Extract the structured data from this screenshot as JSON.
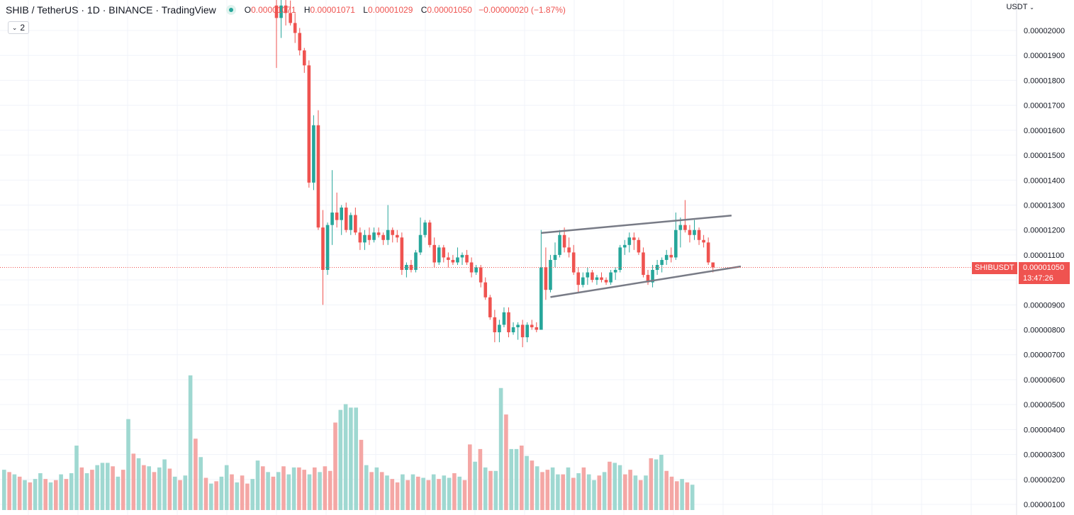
{
  "legend": {
    "symbol": "SHIB",
    "sep1": "/",
    "quote": "TetherUS",
    "interval": "1D",
    "exchange": "BINANCE",
    "platform": "TradingView",
    "open_key": "O",
    "open": "0.00001071",
    "high_key": "H",
    "high": "0.00001071",
    "low_key": "L",
    "low": "0.00001029",
    "close_key": "C",
    "close": "0.00001050",
    "change": "−0.00000020 (−1.87%)",
    "collapse_count": "2",
    "status_color": "#26a69a"
  },
  "axis": {
    "currency": "USDT",
    "ticker_label": "SHIBUSDT",
    "last_price": "0.00001050",
    "countdown": "13:47:26"
  },
  "colors": {
    "up": "#26a69a",
    "down": "#ef5350",
    "up_volume": "#9fd8d1",
    "down_volume": "#f4a7a5",
    "trendline": "#787b86"
  },
  "chart_data": {
    "type": "candlestick",
    "title": "SHIB / TetherUS · 1D · BINANCE",
    "y_unit": "USDT",
    "ylim": [
      1e-06,
      2.11e-05
    ],
    "y_ticks": [
      "0.00000100",
      "0.00000200",
      "0.00000300",
      "0.00000400",
      "0.00000500",
      "0.00000600",
      "0.00000700",
      "0.00000800",
      "0.00000900",
      "0.00001000",
      "0.00001100",
      "0.00001200",
      "0.00001300",
      "0.00001400",
      "0.00001500",
      "0.00001600",
      "0.00001700",
      "0.00001800",
      "0.00001900",
      "0.00002000"
    ],
    "y_tick_values": [
      1e-06,
      2e-06,
      3e-06,
      4e-06,
      5e-06,
      6e-06,
      7e-06,
      8e-06,
      9e-06,
      1e-05,
      1.1e-05,
      1.2e-05,
      1.3e-05,
      1.4e-05,
      1.5e-05,
      1.6e-05,
      1.7e-05,
      1.8e-05,
      1.9e-05,
      2e-05
    ],
    "last_price": 1.05e-05,
    "grid": true,
    "candles": [
      [
        2.1e-05,
        2.15e-05,
        1.85e-05,
        2.05e-05
      ],
      [
        2.05e-05,
        2.15e-05,
        1.97e-05,
        2.1e-05
      ],
      [
        2.1e-05,
        2.14e-05,
        2.02e-05,
        2.07e-05
      ],
      [
        2.07e-05,
        2.12e-05,
        2.02e-05,
        2.03e-05
      ],
      [
        2.03e-05,
        2.07e-05,
        1.95e-05,
        1.99e-05
      ],
      [
        1.99e-05,
        2.01e-05,
        1.9e-05,
        1.92e-05
      ],
      [
        1.92e-05,
        1.93e-05,
        1.83e-05,
        1.86e-05
      ],
      [
        1.86e-05,
        1.88e-05,
        1.37e-05,
        1.39e-05
      ],
      [
        1.39e-05,
        1.66e-05,
        1.36e-05,
        1.62e-05
      ],
      [
        1.62e-05,
        1.68e-05,
        1.2e-05,
        1.21e-05
      ],
      [
        1.21e-05,
        1.28e-05,
        9e-06,
        1.04e-05
      ],
      [
        1.04e-05,
        1.23e-05,
        1.02e-05,
        1.22e-05
      ],
      [
        1.22e-05,
        1.44e-05,
        1.14e-05,
        1.27e-05
      ],
      [
        1.27e-05,
        1.35e-05,
        1.21e-05,
        1.24e-05
      ],
      [
        1.24e-05,
        1.3e-05,
        1.18e-05,
        1.29e-05
      ],
      [
        1.29e-05,
        1.31e-05,
        1.19e-05,
        1.2e-05
      ],
      [
        1.2e-05,
        1.27e-05,
        1.18e-05,
        1.26e-05
      ],
      [
        1.26e-05,
        1.29e-05,
        1.18e-05,
        1.19e-05
      ],
      [
        1.19e-05,
        1.21e-05,
        1.12e-05,
        1.15e-05
      ],
      [
        1.15e-05,
        1.2e-05,
        1.12e-05,
        1.18e-05
      ],
      [
        1.18e-05,
        1.21e-05,
        1.14e-05,
        1.16e-05
      ],
      [
        1.16e-05,
        1.21e-05,
        1.15e-05,
        1.19e-05
      ],
      [
        1.19e-05,
        1.21e-05,
        1.17e-05,
        1.18e-05
      ],
      [
        1.18e-05,
        1.19e-05,
        1.14e-05,
        1.16e-05
      ],
      [
        1.16e-05,
        1.3e-05,
        1.14e-05,
        1.2e-05
      ],
      [
        1.2e-05,
        1.21e-05,
        1.15e-05,
        1.18e-05
      ],
      [
        1.18e-05,
        1.2e-05,
        1.15e-05,
        1.17e-05
      ],
      [
        1.17e-05,
        1.19e-05,
        1.02e-05,
        1.04e-05
      ],
      [
        1.04e-05,
        1.07e-05,
        1.01e-05,
        1.06e-05
      ],
      [
        1.06e-05,
        1.08e-05,
        1.03e-05,
        1.04e-05
      ],
      [
        1.04e-05,
        1.12e-05,
        1.03e-05,
        1.11e-05
      ],
      [
        1.11e-05,
        1.25e-05,
        1.1e-05,
        1.18e-05
      ],
      [
        1.18e-05,
        1.24e-05,
        1.17e-05,
        1.23e-05
      ],
      [
        1.23e-05,
        1.24e-05,
        1.13e-05,
        1.14e-05
      ],
      [
        1.14e-05,
        1.17e-05,
        1.05e-05,
        1.07e-05
      ],
      [
        1.07e-05,
        1.14e-05,
        1.06e-05,
        1.13e-05
      ],
      [
        1.13e-05,
        1.14e-05,
        1.07e-05,
        1.09e-05
      ],
      [
        1.09e-05,
        1.11e-05,
        1.05e-05,
        1.08e-05
      ],
      [
        1.08e-05,
        1.1e-05,
        1.06e-05,
        1.07e-05
      ],
      [
        1.07e-05,
        1.13e-05,
        1.06e-05,
        1.09e-05
      ],
      [
        1.09e-05,
        1.11e-05,
        1.06e-05,
        1.1e-05
      ],
      [
        1.1e-05,
        1.12e-05,
        1.06e-05,
        1.07e-05
      ],
      [
        1.07e-05,
        1.09e-05,
        1.01e-05,
        1.03e-05
      ],
      [
        1.03e-05,
        1.06e-05,
        1.02e-05,
        1.05e-05
      ],
      [
        1.05e-05,
        1.06e-05,
        9.7e-06,
        9.9e-06
      ],
      [
        9.9e-06,
        1.01e-05,
        9.2e-06,
        9.3e-06
      ],
      [
        9.3e-06,
        9.4e-06,
        8.4e-06,
        8.5e-06
      ],
      [
        8.5e-06,
        8.8e-06,
        7.5e-06,
        7.9e-06
      ],
      [
        7.9e-06,
        8.4e-06,
        7.5e-06,
        8.2e-06
      ],
      [
        8.2e-06,
        8.9e-06,
        8.1e-06,
        8.7e-06
      ],
      [
        8.7e-06,
        8.9e-06,
        7.7e-06,
        7.9e-06
      ],
      [
        7.9e-06,
        8.3e-06,
        7.8e-06,
        8.1e-06
      ],
      [
        8.1e-06,
        8.3e-06,
        7.6e-06,
        8.2e-06
      ],
      [
        8.2e-06,
        8.4e-06,
        7.3e-06,
        7.7e-06
      ],
      [
        7.7e-06,
        8.3e-06,
        7.5e-06,
        8.2e-06
      ],
      [
        8.2e-06,
        8.4e-06,
        8e-06,
        8.1e-06
      ],
      [
        8.1e-06,
        8.3e-06,
        7.9e-06,
        8e-06
      ],
      [
        8e-06,
        1.2e-05,
        8e-06,
        1.05e-05
      ],
      [
        1.05e-05,
        1.13e-05,
        9.2e-06,
        9.6e-06
      ],
      [
        9.6e-06,
        1.1e-05,
        9.5e-06,
        1.08e-05
      ],
      [
        1.08e-05,
        1.15e-05,
        1.05e-05,
        1.1e-05
      ],
      [
        1.1e-05,
        1.2e-05,
        1.09e-05,
        1.18e-05
      ],
      [
        1.18e-05,
        1.21e-05,
        1.11e-05,
        1.13e-05
      ],
      [
        1.13e-05,
        1.17e-05,
        1.09e-05,
        1.11e-05
      ],
      [
        1.11e-05,
        1.14e-05,
        1.02e-05,
        1.03e-05
      ],
      [
        1.03e-05,
        1.05e-05,
        9.5e-06,
        9.8e-06
      ],
      [
        9.8e-06,
        1.03e-05,
        9.7e-06,
        1.01e-05
      ],
      [
        1.01e-05,
        1.05e-05,
        9.8e-06,
        1.03e-05
      ],
      [
        1.03e-05,
        1.04e-05,
        9.9e-06,
        1e-05
      ],
      [
        1e-05,
        1.02e-05,
        9.8e-06,
        1.01e-05
      ],
      [
        1.01e-05,
        1.03e-05,
        9.9e-06,
        1e-05
      ],
      [
        1e-05,
        1.01e-05,
        9.8e-06,
        9.9e-06
      ],
      [
        9.9e-06,
        1.04e-05,
        9.8e-06,
        1.03e-05
      ],
      [
        1.03e-05,
        1.05e-05,
        1e-05,
        1.04e-05
      ],
      [
        1.04e-05,
        1.14e-05,
        1.03e-05,
        1.13e-05
      ],
      [
        1.13e-05,
        1.16e-05,
        1.1e-05,
        1.14e-05
      ],
      [
        1.14e-05,
        1.19e-05,
        1.11e-05,
        1.17e-05
      ],
      [
        1.17e-05,
        1.19e-05,
        1.12e-05,
        1.16e-05
      ],
      [
        1.16e-05,
        1.17e-05,
        1.1e-05,
        1.11e-05
      ],
      [
        1.11e-05,
        1.13e-05,
        1.01e-05,
        1.02e-05
      ],
      [
        1.02e-05,
        1.04e-05,
        9.8e-06,
        9.9e-06
      ],
      [
        9.9e-06,
        1.06e-05,
        9.7e-06,
        1.04e-05
      ],
      [
        1.04e-05,
        1.08e-05,
        1.02e-05,
        1.06e-05
      ],
      [
        1.06e-05,
        1.09e-05,
        1.03e-05,
        1.08e-05
      ],
      [
        1.08e-05,
        1.12e-05,
        1.06e-05,
        1.1e-05
      ],
      [
        1.1e-05,
        1.13e-05,
        1.07e-05,
        1.09e-05
      ],
      [
        1.09e-05,
        1.27e-05,
        1.08e-05,
        1.2e-05
      ],
      [
        1.2e-05,
        1.25e-05,
        1.13e-05,
        1.22e-05
      ],
      [
        1.22e-05,
        1.32e-05,
        1.19e-05,
        1.2e-05
      ],
      [
        1.2e-05,
        1.22e-05,
        1.15e-05,
        1.18e-05
      ],
      [
        1.18e-05,
        1.24e-05,
        1.16e-05,
        1.2e-05
      ],
      [
        1.2e-05,
        1.21e-05,
        1.14e-05,
        1.16e-05
      ],
      [
        1.16e-05,
        1.18e-05,
        1.13e-05,
        1.15e-05
      ],
      [
        1.15e-05,
        1.17e-05,
        1.06e-05,
        1.07e-05
      ],
      [
        1.07e-05,
        1.07e-05,
        1.03e-05,
        1.05e-05
      ]
    ],
    "volumes": [
      1.75,
      1.65,
      1.55,
      1.45,
      1.3,
      1.2,
      1.35,
      1.6,
      1.35,
      1.2,
      1.3,
      1.55,
      1.35,
      1.6,
      2.8,
      1.85,
      1.6,
      1.75,
      1.95,
      2.05,
      2.05,
      1.9,
      1.45,
      1.75,
      3.95,
      2.45,
      2.25,
      1.95,
      1.9,
      1.65,
      1.85,
      2.2,
      1.8,
      1.45,
      1.3,
      1.5,
      5.85,
      3.1,
      2.3,
      1.4,
      1.15,
      1.25,
      1.45,
      1.95,
      1.55,
      1.2,
      1.5,
      1.15,
      1.35,
      2.15,
      1.9,
      1.65,
      1.45,
      1.65,
      1.9,
      1.55,
      1.85,
      1.85,
      1.75,
      1.55,
      1.85,
      1.65,
      1.9,
      1.7,
      3.8,
      4.35,
      4.6,
      4.45,
      4.45,
      3.05,
      1.95,
      1.65,
      1.85,
      1.65,
      1.5,
      1.35,
      1.2,
      1.55,
      1.3,
      1.55,
      1.45,
      1.4,
      1.3,
      1.55,
      1.35,
      1.5,
      1.4,
      1.6,
      1.45,
      1.3,
      2.85,
      2.1,
      2.65,
      1.85,
      1.7,
      1.7,
      5.3,
      4.15,
      2.65,
      2.65,
      2.8,
      2.35,
      2.15,
      1.9,
      1.65,
      1.75,
      1.85,
      1.55,
      1.55,
      1.85,
      1.4,
      1.6,
      1.85,
      1.55,
      1.3,
      1.5,
      1.65,
      2.1,
      2.05,
      1.95,
      1.55,
      1.75,
      1.5,
      1.3,
      1.5,
      2.25,
      2.2,
      2.4,
      1.7,
      1.45,
      1.25,
      1.35,
      1.2,
      1.1
    ],
    "volume_up": [
      true,
      false,
      true,
      false,
      true,
      false,
      true,
      true,
      false,
      true,
      false,
      true,
      false,
      true,
      true,
      false,
      true,
      false,
      true,
      true,
      true,
      false,
      true,
      false,
      true,
      false,
      true,
      false,
      true,
      false,
      true,
      true,
      false,
      true,
      false,
      true,
      true,
      false,
      true,
      false,
      true,
      false,
      true,
      true,
      false,
      true,
      false,
      false,
      true,
      true,
      false,
      true,
      false,
      true,
      false,
      true,
      true,
      false,
      false,
      true,
      false,
      true,
      false,
      false,
      false,
      true,
      true,
      true,
      true,
      false,
      true,
      false,
      true,
      false,
      true,
      false,
      false,
      true,
      false,
      true,
      false,
      true,
      false,
      true,
      false,
      true,
      true,
      false,
      true,
      false,
      false,
      true,
      false,
      true,
      false,
      true,
      true,
      false,
      true,
      true,
      false,
      true,
      false,
      true,
      false,
      false,
      true,
      true,
      false,
      true,
      false,
      true,
      false,
      true,
      true,
      false,
      true,
      false,
      true,
      true,
      false,
      false,
      true,
      false,
      true,
      false,
      true,
      true,
      false,
      false,
      false,
      true,
      false,
      true,
      false,
      false
    ],
    "trendlines": [
      {
        "from": [
          57,
          1.188e-05
        ],
        "to": [
          98,
          1.258e-05
        ]
      },
      {
        "from": [
          59,
          9.31e-06
        ],
        "to": [
          100,
          1.054e-05
        ]
      }
    ]
  }
}
